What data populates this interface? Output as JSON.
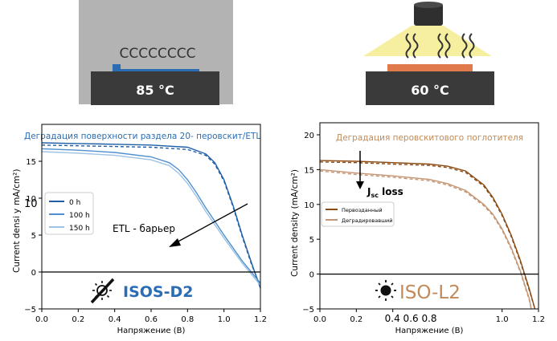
{
  "illustrations": {
    "left": {
      "temperature_label": "85 °C",
      "glyphs": "CCCCCCCC",
      "icon": "heater-plate-icon",
      "box_color": "#b3b3b3",
      "accent": "#2a6db5"
    },
    "right": {
      "temperature_label": "60 °C",
      "icon": "lamp-icon",
      "light_color": "#f6ef9f",
      "sample_color": "#e07a4a",
      "heat_waves": "heat-waves-icon"
    }
  },
  "chart_data": [
    {
      "type": "line",
      "title": "Деградация поверхности раздела 20- перовскит/ETL",
      "xlabel": "Напряжение (В)",
      "ylabel": "Current densi",
      "ylabel_suffix": "y",
      "ylabel_unit": "mA/cm²)",
      "xlim": [
        0.0,
        1.2
      ],
      "ylim": [
        -5,
        20
      ],
      "xticks": [
        "0.0",
        "0.2",
        "0.4",
        "0.6",
        "0.8",
        "1.0",
        "1.2"
      ],
      "yticks": [
        "−5",
        "0",
        "5",
        "10",
        "15"
      ],
      "ytick_values": [
        -5,
        0,
        5,
        10,
        15
      ],
      "partial_tick_text": "10",
      "grid": false,
      "legend": {
        "placement": "middle-left",
        "entries": [
          "0 h",
          "100 h",
          "150 h"
        ]
      },
      "annotation": "ETL - барьер",
      "badge": "ISOS-D2",
      "badge_icon": "sun-crossed-out-icon",
      "colors": {
        "title": "#2a6db5",
        "series": [
          "#1f5fa8",
          "#4f8fcf",
          "#9cc2e6"
        ],
        "badge": "#2a6db5"
      },
      "series": [
        {
          "name": "0 h",
          "style": "solid",
          "x": [
            0,
            0.2,
            0.4,
            0.6,
            0.8,
            0.9,
            0.95,
            1.0,
            1.05,
            1.1,
            1.15,
            1.2
          ],
          "y": [
            17.5,
            17.4,
            17.3,
            17.2,
            16.9,
            16.0,
            14.8,
            12.5,
            9.0,
            5.0,
            1.3,
            -2.2
          ]
        },
        {
          "name": "0 h",
          "style": "dashed",
          "x": [
            0,
            0.2,
            0.4,
            0.6,
            0.8,
            0.9,
            0.95,
            1.0,
            1.05,
            1.1,
            1.15,
            1.2
          ],
          "y": [
            17.2,
            17.1,
            17.0,
            16.9,
            16.6,
            15.8,
            14.6,
            12.3,
            8.8,
            4.8,
            1.1,
            -2.0
          ]
        },
        {
          "name": "100 h",
          "style": "solid",
          "x": [
            0,
            0.2,
            0.4,
            0.6,
            0.7,
            0.75,
            0.8,
            0.85,
            0.9,
            1.0,
            1.1,
            1.2
          ],
          "y": [
            16.7,
            16.5,
            16.2,
            15.6,
            14.8,
            13.9,
            12.5,
            10.7,
            8.7,
            5.0,
            1.5,
            -1.5
          ]
        },
        {
          "name": "150 h",
          "style": "solid",
          "x": [
            0,
            0.2,
            0.4,
            0.6,
            0.7,
            0.75,
            0.8,
            0.85,
            0.9,
            1.0,
            1.1,
            1.2
          ],
          "y": [
            16.3,
            16.1,
            15.8,
            15.2,
            14.4,
            13.4,
            12.0,
            10.2,
            8.2,
            4.6,
            1.2,
            -1.8
          ]
        }
      ]
    },
    {
      "type": "line",
      "title": "Деградация перовскитового поглотителя",
      "xlabel": "Напряжение (В)",
      "ylabel": "Current density (mA/cm²)",
      "xlim": [
        0.0,
        1.2
      ],
      "ylim": [
        -5,
        20
      ],
      "xticks": [
        "0.0",
        "0.2",
        "0.4 0.6 0.8",
        "1.0",
        "1.2"
      ],
      "xtick_values": [
        0.0,
        0.2,
        0.4,
        1.0,
        1.2
      ],
      "yticks": [
        "−5",
        "0",
        "5",
        "10",
        "15",
        "20"
      ],
      "ytick_values": [
        -5,
        0,
        5,
        10,
        15,
        20
      ],
      "grid": false,
      "legend": {
        "placement": "middle-left",
        "entries": [
          "Первозданный",
          "Деградировавший"
        ]
      },
      "annotation": "J",
      "annotation_sub": "sc",
      "annotation_rest": " loss",
      "badge": "ISO-L2",
      "badge_icon": "sun-icon",
      "colors": {
        "title": "#c08a5a",
        "series": [
          "#8b4a12",
          "#c49572"
        ],
        "badge": "#c08a5a"
      },
      "series": [
        {
          "name": "Первозданный",
          "style": "solid",
          "x": [
            0,
            0.2,
            0.4,
            0.6,
            0.7,
            0.8,
            0.9,
            0.95,
            1.0,
            1.05,
            1.1,
            1.15,
            1.18
          ],
          "y": [
            16.3,
            16.2,
            16.0,
            15.8,
            15.5,
            14.8,
            12.8,
            11.0,
            8.6,
            5.6,
            2.0,
            -2.2,
            -5.0
          ]
        },
        {
          "name": "Первозданный",
          "style": "dashed",
          "x": [
            0,
            0.2,
            0.4,
            0.6,
            0.7,
            0.8,
            0.9,
            0.95,
            1.0,
            1.05,
            1.1,
            1.15,
            1.18
          ],
          "y": [
            16.1,
            16.0,
            15.8,
            15.6,
            15.3,
            14.6,
            12.6,
            10.8,
            8.4,
            5.4,
            1.8,
            -2.4,
            -5.0
          ]
        },
        {
          "name": "Деградировавший",
          "style": "solid",
          "x": [
            0,
            0.2,
            0.4,
            0.6,
            0.7,
            0.8,
            0.9,
            0.95,
            1.0,
            1.05,
            1.1,
            1.15,
            1.16
          ],
          "y": [
            15.0,
            14.5,
            14.1,
            13.6,
            13.0,
            12.0,
            10.0,
            8.6,
            6.5,
            3.8,
            0.5,
            -3.6,
            -5.0
          ]
        },
        {
          "name": "Деградировавший",
          "style": "dashed",
          "x": [
            0,
            0.2,
            0.4,
            0.6,
            0.7,
            0.8,
            0.9,
            0.95,
            1.0,
            1.05,
            1.1,
            1.15,
            1.16
          ],
          "y": [
            14.8,
            14.3,
            13.9,
            13.4,
            12.8,
            11.8,
            9.8,
            8.4,
            6.3,
            3.6,
            0.3,
            -3.8,
            -5.0
          ]
        }
      ]
    }
  ]
}
